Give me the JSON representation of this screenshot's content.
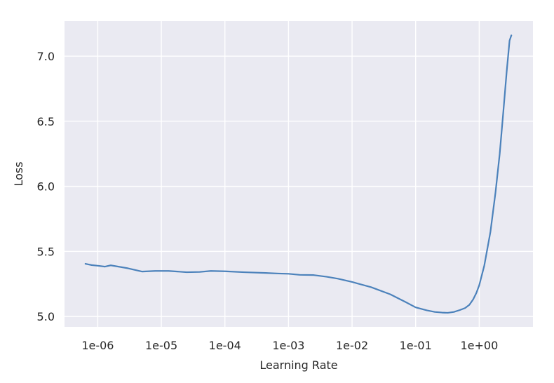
{
  "chart_data": {
    "type": "line",
    "xlabel": "Learning Rate",
    "ylabel": "Loss",
    "x_scale": "log",
    "xlim": [
      3e-07,
      7.0
    ],
    "ylim": [
      4.92,
      7.27
    ],
    "grid": true,
    "colors": {
      "background": "#eaeaf2",
      "grid": "#ffffff",
      "line": "#4c82bb"
    },
    "x_ticks": [
      {
        "value": 1e-06,
        "label": "1e-06"
      },
      {
        "value": 1e-05,
        "label": "1e-05"
      },
      {
        "value": 0.0001,
        "label": "1e-04"
      },
      {
        "value": 0.001,
        "label": "1e-03"
      },
      {
        "value": 0.01,
        "label": "1e-02"
      },
      {
        "value": 0.1,
        "label": "1e-01"
      },
      {
        "value": 1,
        "label": "1e+00"
      }
    ],
    "y_ticks": [
      {
        "value": 5.0,
        "label": "5.0"
      },
      {
        "value": 5.5,
        "label": "5.5"
      },
      {
        "value": 6.0,
        "label": "6.0"
      },
      {
        "value": 6.5,
        "label": "6.5"
      },
      {
        "value": 7.0,
        "label": "7.0"
      }
    ],
    "series": [
      {
        "x": [
          6.4e-07,
          8e-07,
          1e-06,
          1.3e-06,
          1.6e-06,
          2e-06,
          3e-06,
          5e-06,
          8e-06,
          1.3e-05,
          2.5e-05,
          4e-05,
          6e-05,
          0.0001,
          0.0002,
          0.0004,
          0.0007,
          0.001,
          0.0015,
          0.0025,
          0.004,
          0.006,
          0.01,
          0.02,
          0.04,
          0.07,
          0.1,
          0.15,
          0.2,
          0.26,
          0.32,
          0.4,
          0.5,
          0.6,
          0.7,
          0.8,
          0.9,
          1.0,
          1.2,
          1.5,
          1.8,
          2.1,
          2.4,
          2.7,
          3.0,
          3.2
        ],
        "y": [
          5.405,
          5.395,
          5.39,
          5.383,
          5.393,
          5.385,
          5.37,
          5.345,
          5.35,
          5.35,
          5.34,
          5.342,
          5.35,
          5.347,
          5.34,
          5.335,
          5.33,
          5.328,
          5.32,
          5.318,
          5.305,
          5.29,
          5.265,
          5.225,
          5.17,
          5.11,
          5.07,
          5.047,
          5.035,
          5.03,
          5.028,
          5.035,
          5.05,
          5.065,
          5.09,
          5.13,
          5.18,
          5.24,
          5.39,
          5.65,
          5.95,
          6.25,
          6.58,
          6.88,
          7.12,
          7.16
        ]
      }
    ]
  }
}
